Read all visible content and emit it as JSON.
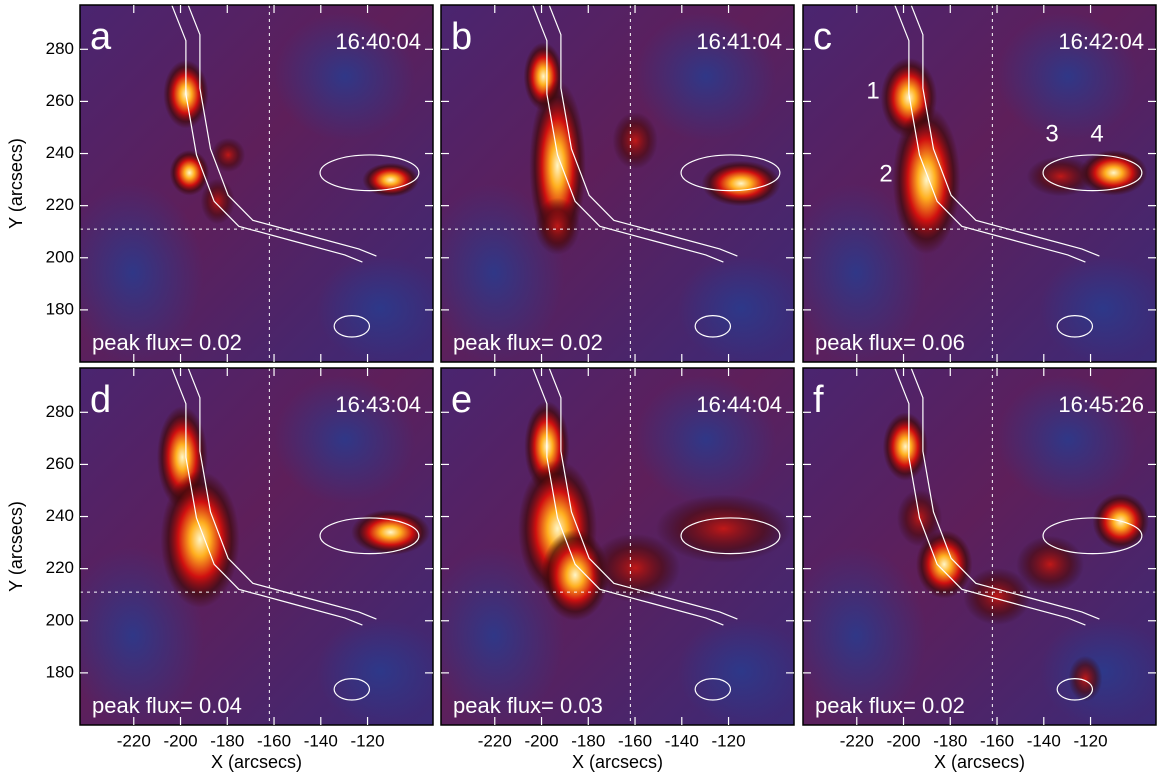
{
  "chart_data": [
    {
      "type": "image",
      "panel": "a",
      "time": "16:40:04",
      "annotation": "peak flux= 0.02",
      "xlim": [
        -243,
        -92
      ],
      "ylim": [
        160,
        297
      ],
      "xticks": [
        -220,
        -200,
        -180,
        -160,
        -140,
        -120
      ],
      "yticks": [
        180,
        200,
        220,
        240,
        260,
        280
      ],
      "crosshair": {
        "x": -162,
        "y": 211
      },
      "ylabel": "Y (arcsecs)"
    },
    {
      "type": "image",
      "panel": "b",
      "time": "16:41:04",
      "annotation": "peak flux= 0.02",
      "xlim": [
        -243,
        -92
      ],
      "ylim": [
        160,
        297
      ],
      "xticks": [
        -220,
        -200,
        -180,
        -160,
        -140,
        -120
      ],
      "yticks": [
        180,
        200,
        220,
        240,
        260,
        280
      ],
      "crosshair": {
        "x": -162,
        "y": 211
      }
    },
    {
      "type": "image",
      "panel": "c",
      "time": "16:42:04",
      "annotation": "peak flux= 0.06",
      "labels": [
        "1",
        "2",
        "3",
        "4"
      ],
      "xlim": [
        -243,
        -92
      ],
      "ylim": [
        160,
        297
      ],
      "xticks": [
        -220,
        -200,
        -180,
        -160,
        -140,
        -120
      ],
      "yticks": [
        180,
        200,
        220,
        240,
        260,
        280
      ],
      "crosshair": {
        "x": -162,
        "y": 211
      }
    },
    {
      "type": "image",
      "panel": "d",
      "time": "16:43:04",
      "annotation": "peak flux= 0.04",
      "xlim": [
        -243,
        -92
      ],
      "ylim": [
        160,
        297
      ],
      "xticks": [
        -220,
        -200,
        -180,
        -160,
        -140,
        -120
      ],
      "yticks": [
        180,
        200,
        220,
        240,
        260,
        280
      ],
      "crosshair": {
        "x": -162,
        "y": 211
      },
      "ylabel": "Y (arcsecs)",
      "xlabel": "X (arcsecs)"
    },
    {
      "type": "image",
      "panel": "e",
      "time": "16:44:04",
      "annotation": "peak flux= 0.03",
      "xlim": [
        -243,
        -92
      ],
      "ylim": [
        160,
        297
      ],
      "xticks": [
        -220,
        -200,
        -180,
        -160,
        -140,
        -120
      ],
      "yticks": [
        180,
        200,
        220,
        240,
        260,
        280
      ],
      "crosshair": {
        "x": -162,
        "y": 211
      },
      "xlabel": "X (arcsecs)"
    },
    {
      "type": "image",
      "panel": "f",
      "time": "16:45:26",
      "annotation": "peak flux= 0.02",
      "xlim": [
        -243,
        -92
      ],
      "ylim": [
        160,
        297
      ],
      "xticks": [
        -220,
        -200,
        -180,
        -160,
        -140,
        -120
      ],
      "yticks": [
        180,
        200,
        220,
        240,
        260,
        280
      ],
      "crosshair": {
        "x": -162,
        "y": 211
      },
      "xlabel": "X (arcsecs)"
    }
  ]
}
